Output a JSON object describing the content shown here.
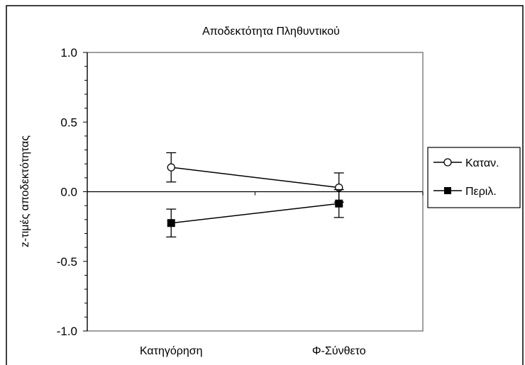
{
  "chart_data": {
    "type": "line",
    "title": "Αποδεκτότητα Πληθυντικού",
    "xlabel": "",
    "ylabel": "z-τιμές αποδεκτότητας",
    "categories": [
      "Κατηγόρηση",
      "Φ-Σύνθετο"
    ],
    "ylim": [
      -1.0,
      1.0
    ],
    "yticks": [
      "1.0",
      "0.5",
      "0.0",
      "-0.5",
      "-1.0"
    ],
    "grid": false,
    "legend_position": "right",
    "series": [
      {
        "name": "Καταν.",
        "marker": "open-circle",
        "values": [
          0.175,
          0.03
        ],
        "error": [
          0.105,
          0.105
        ]
      },
      {
        "name": "Περιλ.",
        "marker": "filled-square",
        "values": [
          -0.225,
          -0.085
        ],
        "error": [
          0.1,
          0.1
        ]
      }
    ]
  }
}
